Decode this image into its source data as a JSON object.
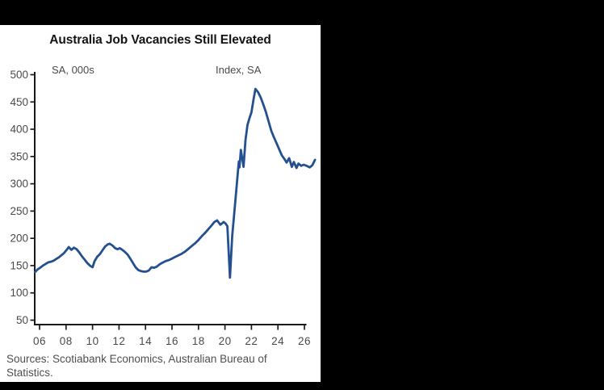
{
  "frame": {
    "bar_color": "#000000",
    "canvas_color": "#ffffff"
  },
  "chart": {
    "title": "Australia Job Vacancies Still Elevated",
    "left_axis_unit": "SA, 000s",
    "right_axis_unit": "Index, SA",
    "source_note": "Sources: Scotiabank Economics, Australian Bureau of Statistics."
  },
  "chart_data": {
    "type": "line",
    "title": "Australia Job Vacancies Still Elevated",
    "ylabel": "SA, 000s",
    "ylabel_right": "Index, SA",
    "ylim": [
      50,
      500
    ],
    "ytick_step": 50,
    "xlim_years": [
      2005.6,
      2027.0
    ],
    "xticks": [
      {
        "year": 2006,
        "label": "06"
      },
      {
        "year": 2008,
        "label": "08"
      },
      {
        "year": 2010,
        "label": "10"
      },
      {
        "year": 2012,
        "label": "12"
      },
      {
        "year": 2014,
        "label": "14"
      },
      {
        "year": 2016,
        "label": "16"
      },
      {
        "year": 2018,
        "label": "18"
      },
      {
        "year": 2020,
        "label": "20"
      },
      {
        "year": 2022,
        "label": "22"
      },
      {
        "year": 2024,
        "label": "24"
      },
      {
        "year": 2026,
        "label": "26"
      }
    ],
    "grid": false,
    "legend": "none",
    "style": {
      "line_color": "#24508F",
      "axis_color": "#1a1a1a",
      "tick_label_color": "#4a4a4a"
    },
    "series": [
      {
        "name": "Australia job vacancies (SA, 000s)",
        "points": [
          [
            2005.65,
            138
          ],
          [
            2005.85,
            143
          ],
          [
            2006.05,
            146
          ],
          [
            2006.25,
            150
          ],
          [
            2006.45,
            153
          ],
          [
            2006.65,
            156
          ],
          [
            2006.85,
            157
          ],
          [
            2007.05,
            159
          ],
          [
            2007.25,
            162
          ],
          [
            2007.45,
            165
          ],
          [
            2007.65,
            169
          ],
          [
            2007.85,
            173
          ],
          [
            2008.05,
            179
          ],
          [
            2008.2,
            184
          ],
          [
            2008.4,
            179
          ],
          [
            2008.6,
            183
          ],
          [
            2008.8,
            180
          ],
          [
            2009.0,
            174
          ],
          [
            2009.2,
            167
          ],
          [
            2009.4,
            161
          ],
          [
            2009.6,
            155
          ],
          [
            2009.8,
            150
          ],
          [
            2010.0,
            147
          ],
          [
            2010.15,
            158
          ],
          [
            2010.35,
            166
          ],
          [
            2010.55,
            171
          ],
          [
            2010.75,
            178
          ],
          [
            2010.95,
            185
          ],
          [
            2011.15,
            189
          ],
          [
            2011.3,
            190
          ],
          [
            2011.5,
            187
          ],
          [
            2011.7,
            182
          ],
          [
            2011.9,
            180
          ],
          [
            2012.05,
            182
          ],
          [
            2012.25,
            179
          ],
          [
            2012.45,
            175
          ],
          [
            2012.65,
            170
          ],
          [
            2012.85,
            163
          ],
          [
            2013.05,
            155
          ],
          [
            2013.25,
            147
          ],
          [
            2013.45,
            142
          ],
          [
            2013.65,
            140
          ],
          [
            2013.85,
            139
          ],
          [
            2014.05,
            139
          ],
          [
            2014.25,
            141
          ],
          [
            2014.45,
            147
          ],
          [
            2014.65,
            146
          ],
          [
            2014.85,
            148
          ],
          [
            2015.05,
            152
          ],
          [
            2015.25,
            155
          ],
          [
            2015.5,
            158
          ],
          [
            2015.75,
            160
          ],
          [
            2016.0,
            163
          ],
          [
            2016.25,
            166
          ],
          [
            2016.5,
            169
          ],
          [
            2016.75,
            172
          ],
          [
            2017.0,
            176
          ],
          [
            2017.25,
            181
          ],
          [
            2017.5,
            186
          ],
          [
            2017.75,
            191
          ],
          [
            2018.0,
            197
          ],
          [
            2018.25,
            204
          ],
          [
            2018.5,
            210
          ],
          [
            2018.75,
            217
          ],
          [
            2019.0,
            224
          ],
          [
            2019.2,
            230
          ],
          [
            2019.4,
            233
          ],
          [
            2019.65,
            225
          ],
          [
            2019.9,
            230
          ],
          [
            2020.05,
            227
          ],
          [
            2020.18,
            222
          ],
          [
            2020.38,
            128
          ],
          [
            2020.55,
            205
          ],
          [
            2020.7,
            246
          ],
          [
            2020.85,
            286
          ],
          [
            2020.97,
            320
          ],
          [
            2021.05,
            341
          ],
          [
            2021.1,
            330
          ],
          [
            2021.2,
            362
          ],
          [
            2021.4,
            331
          ],
          [
            2021.55,
            380
          ],
          [
            2021.7,
            408
          ],
          [
            2021.85,
            420
          ],
          [
            2022.0,
            431
          ],
          [
            2022.15,
            454
          ],
          [
            2022.3,
            474
          ],
          [
            2022.5,
            468
          ],
          [
            2022.7,
            458
          ],
          [
            2022.9,
            445
          ],
          [
            2023.1,
            431
          ],
          [
            2023.3,
            414
          ],
          [
            2023.5,
            397
          ],
          [
            2023.7,
            385
          ],
          [
            2023.9,
            374
          ],
          [
            2024.1,
            363
          ],
          [
            2024.3,
            352
          ],
          [
            2024.5,
            345
          ],
          [
            2024.65,
            339
          ],
          [
            2024.85,
            347
          ],
          [
            2025.05,
            331
          ],
          [
            2025.2,
            340
          ],
          [
            2025.4,
            329
          ],
          [
            2025.55,
            337
          ],
          [
            2025.75,
            333
          ],
          [
            2025.95,
            335
          ],
          [
            2026.15,
            333
          ],
          [
            2026.4,
            330
          ],
          [
            2026.6,
            334
          ],
          [
            2026.8,
            344
          ]
        ]
      }
    ]
  }
}
